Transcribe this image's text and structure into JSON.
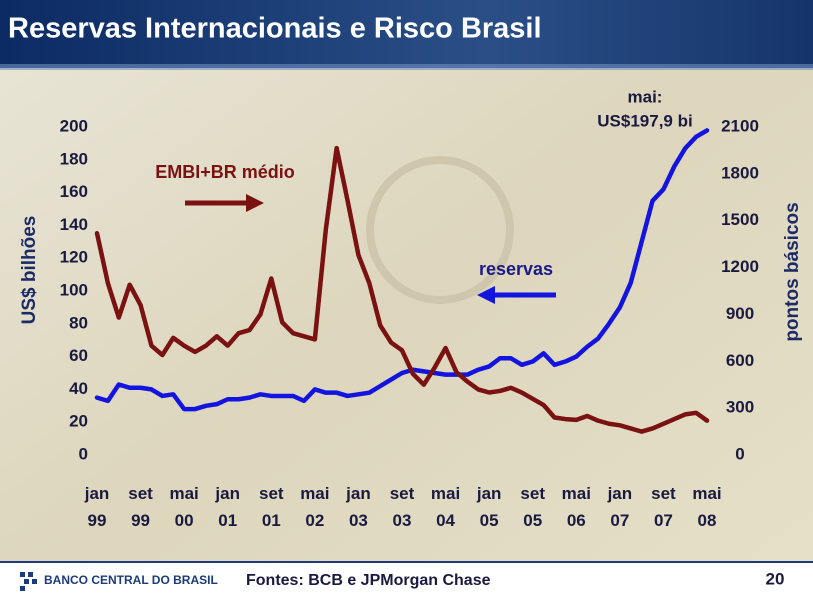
{
  "chart_data": {
    "type": "line",
    "title": "Reservas Internacionais e Risco Brasil",
    "ylabel": "US$ bilhões",
    "y2label": "pontos básicos",
    "annotation": [
      "mai:",
      "US$197,9 bi"
    ],
    "footer_brand": "BANCO CENTRAL DO BRASIL",
    "source": "Fontes: BCB e JPMorgan Chase",
    "page_number": "20",
    "categories": [
      "jan 99",
      null,
      null,
      null,
      "set 99",
      null,
      null,
      null,
      "mai 00",
      null,
      null,
      null,
      "jan 01",
      null,
      null,
      null,
      "set 01",
      null,
      null,
      null,
      "mai 02",
      null,
      null,
      null,
      "jan 03",
      null,
      null,
      null,
      "set 03",
      null,
      null,
      null,
      "mai 04",
      null,
      null,
      null,
      "jan 05",
      null,
      null,
      null,
      "set 05",
      null,
      null,
      null,
      "mai 06",
      null,
      null,
      null,
      "jan 07",
      null,
      null,
      null,
      "set 07",
      null,
      null,
      null,
      "mai 08"
    ],
    "series": [
      {
        "name": "reservas",
        "color": "#1414e0",
        "axis": "y",
        "values": [
          35,
          33,
          43,
          41,
          41,
          40,
          36,
          37,
          28,
          28,
          30,
          31,
          34,
          34,
          35,
          37,
          36,
          36,
          36,
          33,
          40,
          38,
          38,
          36,
          37,
          38,
          42,
          46,
          50,
          52,
          51,
          50,
          49,
          49,
          49,
          52,
          54,
          59,
          59,
          55,
          57,
          62,
          55,
          57,
          60,
          66,
          71,
          80,
          90,
          105,
          130,
          155,
          162,
          176,
          187,
          194,
          197.9
        ]
      },
      {
        "name": "EMBI+BR médio",
        "color": "#7a1212",
        "axis": "y2",
        "values": [
          1420,
          1100,
          880,
          1090,
          960,
          700,
          640,
          750,
          700,
          660,
          700,
          760,
          700,
          780,
          800,
          900,
          1130,
          850,
          780,
          760,
          740,
          1440,
          1965,
          1630,
          1280,
          1100,
          830,
          720,
          670,
          520,
          450,
          560,
          685,
          530,
          470,
          420,
          400,
          410,
          430,
          400,
          360,
          320,
          240,
          230,
          225,
          250,
          220,
          200,
          190,
          170,
          150,
          170,
          200,
          230,
          260,
          270,
          220
        ]
      }
    ],
    "ylim": [
      0,
      200
    ],
    "yticks": [
      0,
      20,
      40,
      60,
      80,
      100,
      120,
      140,
      160,
      180,
      200
    ],
    "y2lim": [
      0,
      2100
    ],
    "y2ticks": [
      0,
      300,
      600,
      900,
      1200,
      1500,
      1800,
      2100
    ]
  }
}
